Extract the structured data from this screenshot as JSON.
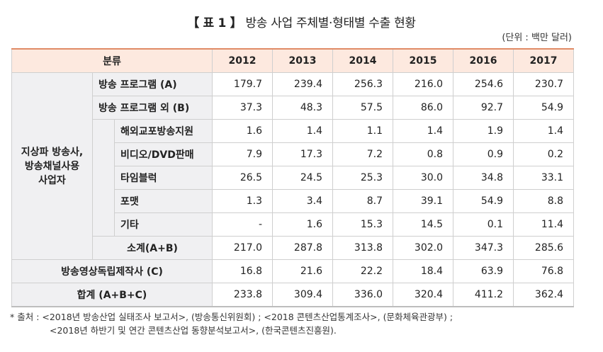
{
  "title": {
    "prefix": "【 표 1 】",
    "text": "방송 사업 주체별·형태별 수출 현황"
  },
  "unit": "(단위 : 백만 달러)",
  "header": {
    "category": "분류",
    "years": [
      "2012",
      "2013",
      "2014",
      "2015",
      "2016",
      "2017"
    ]
  },
  "group_label": "지상파 방송사,\n방송채널사용\n사업자",
  "rows": [
    {
      "label": "방송 프로그램 (A)",
      "values": [
        "179.7",
        "239.4",
        "256.3",
        "216.0",
        "254.6",
        "230.7"
      ]
    },
    {
      "label": "방송 프로그램 외 (B)",
      "values": [
        "37.3",
        "48.3",
        "57.5",
        "86.0",
        "92.7",
        "54.9"
      ]
    },
    {
      "label": "해외교포방송지원",
      "values": [
        "1.6",
        "1.4",
        "1.1",
        "1.4",
        "1.9",
        "1.4"
      ]
    },
    {
      "label": "비디오/DVD판매",
      "values": [
        "7.9",
        "17.3",
        "7.2",
        "0.8",
        "0.9",
        "0.2"
      ]
    },
    {
      "label": "타임블럭",
      "values": [
        "26.5",
        "24.5",
        "25.3",
        "30.0",
        "34.8",
        "33.1"
      ]
    },
    {
      "label": "포맷",
      "values": [
        "1.3",
        "3.4",
        "8.7",
        "39.1",
        "54.9",
        "8.8"
      ]
    },
    {
      "label": "기타",
      "values": [
        "-",
        "1.6",
        "15.3",
        "14.5",
        "0.1",
        "11.4"
      ]
    },
    {
      "label": "소계(A+B)",
      "values": [
        "217.0",
        "287.8",
        "313.8",
        "302.0",
        "347.3",
        "285.6"
      ]
    },
    {
      "label": "방송영상독립제작사 (C)",
      "values": [
        "16.8",
        "21.6",
        "22.2",
        "18.4",
        "63.9",
        "76.8"
      ]
    },
    {
      "label": "합계 (A+B+C)",
      "values": [
        "233.8",
        "309.4",
        "336.0",
        "320.4",
        "411.2",
        "362.4"
      ]
    }
  ],
  "notes": {
    "line1": "* 출처 : <2018년 방송산업 실태조사 보고서>, (방송통신위원회) ; <2018 콘텐츠산업통계조사>, (문화체육관광부) ;",
    "line2": "<2018년 하반기 및 연간 콘텐츠산업 동향분석보고서>, (한국콘텐츠진흥원)."
  }
}
